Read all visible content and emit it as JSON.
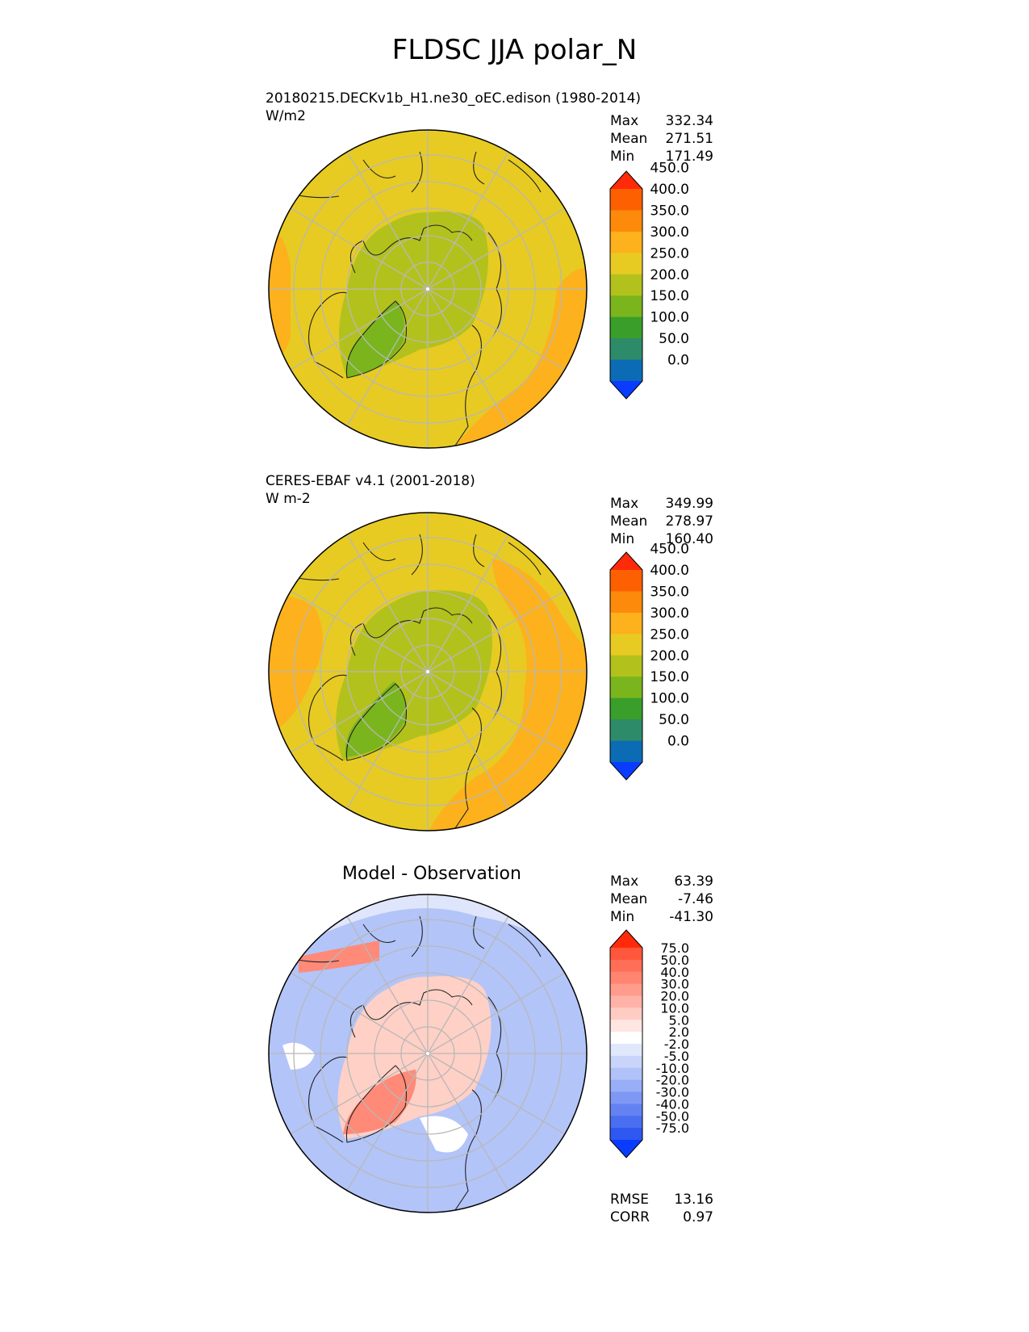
{
  "figure": {
    "title": "FLDSC JJA polar_N"
  },
  "panels": [
    {
      "title_line1": "20180215.DECKv1b_H1.ne30_oEC.edison (1980-2014)",
      "title_line2": "W/m2",
      "stats": [
        {
          "label": "Max",
          "value": "332.34"
        },
        {
          "label": "Mean",
          "value": "271.51"
        },
        {
          "label": "Min",
          "value": "171.49"
        }
      ],
      "colorbar": {
        "colors": [
          "#0a3cff",
          "#0b6cb5",
          "#2e8b6a",
          "#3a9e2a",
          "#7ab51d",
          "#b3c11d",
          "#e7cb22",
          "#fdb11c",
          "#fd8a0a",
          "#fd6000",
          "#ff2a0a"
        ],
        "ticks": [
          "0.0",
          "50.0",
          "100.0",
          "150.0",
          "200.0",
          "250.0",
          "300.0",
          "350.0",
          "400.0",
          "450.0"
        ]
      },
      "regions": {
        "arctic": "#b3c11d",
        "greenland": "#7ab51d",
        "midlat": "#e7cb22",
        "warm": "#fdb11c"
      }
    },
    {
      "title_line1": "CERES-EBAF v4.1 (2001-2018)",
      "title_line2": "W m-2",
      "stats": [
        {
          "label": "Max",
          "value": "349.99"
        },
        {
          "label": "Mean",
          "value": "278.97"
        },
        {
          "label": "Min",
          "value": "160.40"
        }
      ],
      "colorbar": {
        "colors": [
          "#0a3cff",
          "#0b6cb5",
          "#2e8b6a",
          "#3a9e2a",
          "#7ab51d",
          "#b3c11d",
          "#e7cb22",
          "#fdb11c",
          "#fd8a0a",
          "#fd6000",
          "#ff2a0a"
        ],
        "ticks": [
          "0.0",
          "50.0",
          "100.0",
          "150.0",
          "200.0",
          "250.0",
          "300.0",
          "350.0",
          "400.0",
          "450.0"
        ]
      },
      "regions": {
        "arctic": "#b3c11d",
        "greenland": "#7ab51d",
        "midlat": "#e7cb22",
        "warm": "#fdb11c"
      }
    },
    {
      "title": "Model - Observation",
      "stats": [
        {
          "label": "Max",
          "value": "63.39"
        },
        {
          "label": "Mean",
          "value": "-7.46"
        },
        {
          "label": "Min",
          "value": "-41.30"
        }
      ],
      "colorbar": {
        "colors": [
          "#0a3cff",
          "#2f58f0",
          "#4a6ef0",
          "#6482f2",
          "#7e98f4",
          "#98aef6",
          "#b0c2f8",
          "#c8d4fa",
          "#e0e8fc",
          "#ffffff",
          "#ffe6e2",
          "#ffccc4",
          "#ffb3a8",
          "#ff9c8c",
          "#ff8570",
          "#ff6e56",
          "#ff563c",
          "#ff2a0a"
        ],
        "ticks": [
          "-75.0",
          "-50.0",
          "-40.0",
          "-30.0",
          "-20.0",
          "-10.0",
          "-5.0",
          "-2.0",
          "2.0",
          "5.0",
          "10.0",
          "20.0",
          "30.0",
          "40.0",
          "50.0",
          "75.0"
        ]
      },
      "regions": {
        "arctic": "#ffd0c6",
        "greenland": "#ff8a78",
        "midlat": "#b3c4f8",
        "warm": "#8fa6f4"
      },
      "metrics": [
        {
          "label": "RMSE",
          "value": "13.16"
        },
        {
          "label": "CORR",
          "value": "0.97"
        }
      ]
    }
  ]
}
